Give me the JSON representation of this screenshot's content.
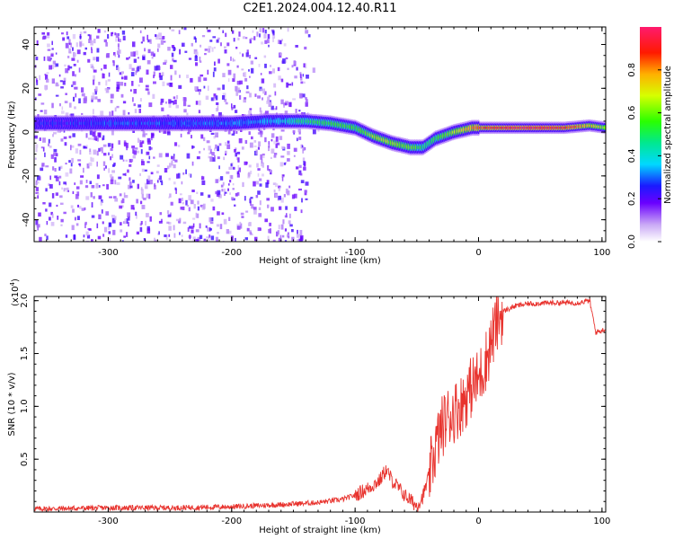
{
  "title": "C2E1.2024.004.12.40.R11",
  "chart_data": [
    {
      "type": "heatmap",
      "xlabel": "Height of straight line (km)",
      "ylabel": "Frequency (Hz)",
      "xlim": [
        -360,
        103
      ],
      "ylim": [
        -50,
        48
      ],
      "xticks": [
        -300,
        -200,
        -100,
        0,
        100
      ],
      "yticks": [
        -40,
        -20,
        0,
        20,
        40
      ],
      "colorbar": {
        "label": "Normalized spectral amplitude",
        "range": [
          0,
          1
        ],
        "ticks": [
          0.0,
          0.2,
          0.4,
          0.6,
          0.8
        ],
        "tick_labels": [
          "0.0",
          "0.2",
          "0.4",
          "0.6",
          "0.8"
        ]
      },
      "ridge": [
        {
          "x": -355,
          "y": 4,
          "amp": 0.2
        },
        {
          "x": -300,
          "y": 4,
          "amp": 0.25
        },
        {
          "x": -250,
          "y": 4,
          "amp": 0.25
        },
        {
          "x": -200,
          "y": 4,
          "amp": 0.28
        },
        {
          "x": -170,
          "y": 5,
          "amp": 0.3
        },
        {
          "x": -140,
          "y": 5,
          "amp": 0.45
        },
        {
          "x": -120,
          "y": 4,
          "amp": 0.5
        },
        {
          "x": -100,
          "y": 2,
          "amp": 0.5
        },
        {
          "x": -85,
          "y": -2,
          "amp": 0.6
        },
        {
          "x": -70,
          "y": -5,
          "amp": 0.6
        },
        {
          "x": -55,
          "y": -7,
          "amp": 0.55
        },
        {
          "x": -45,
          "y": -7,
          "amp": 0.45
        },
        {
          "x": -35,
          "y": -3,
          "amp": 0.5
        },
        {
          "x": -20,
          "y": 0,
          "amp": 0.6
        },
        {
          "x": -5,
          "y": 2,
          "amp": 0.75
        },
        {
          "x": 10,
          "y": 2,
          "amp": 0.85
        },
        {
          "x": 40,
          "y": 2,
          "amp": 0.9
        },
        {
          "x": 70,
          "y": 2,
          "amp": 0.85
        },
        {
          "x": 90,
          "y": 3,
          "amp": 0.7
        },
        {
          "x": 103,
          "y": 2,
          "amp": 0.6
        }
      ]
    },
    {
      "type": "line",
      "xlabel": "Height of straight line (km)",
      "ylabel": "SNR (10 * v/v)",
      "y_multiplier": "(x10",
      "y_multiplier_exp": "4",
      "xlim": [
        -360,
        103
      ],
      "ylim": [
        0,
        20400
      ],
      "xticks": [
        -300,
        -200,
        -100,
        0,
        100
      ],
      "yticks": [
        5000,
        10000,
        15000,
        20000
      ],
      "ytick_labels": [
        "0.5",
        "1.0",
        "1.5",
        "2.0"
      ],
      "color": "#e8332e",
      "series": [
        {
          "x": [
            -360,
            -300,
            -250,
            -200,
            -160,
            -130,
            -110,
            -100,
            -90,
            -80,
            -75,
            -70,
            -60,
            -50,
            -45,
            -40,
            -35,
            -30,
            -25,
            -20,
            -15,
            -10,
            -5,
            0,
            5,
            10,
            15,
            20,
            30,
            40,
            60,
            80,
            90,
            95,
            103
          ],
          "y": [
            300,
            400,
            400,
            500,
            700,
            900,
            1200,
            1600,
            2200,
            3000,
            4000,
            3000,
            1600,
            600,
            1500,
            3500,
            6000,
            8000,
            9000,
            9500,
            10000,
            11000,
            12000,
            12500,
            14000,
            16000,
            18000,
            19000,
            19500,
            19700,
            19800,
            19800,
            20000,
            17000,
            17300
          ]
        }
      ]
    }
  ]
}
